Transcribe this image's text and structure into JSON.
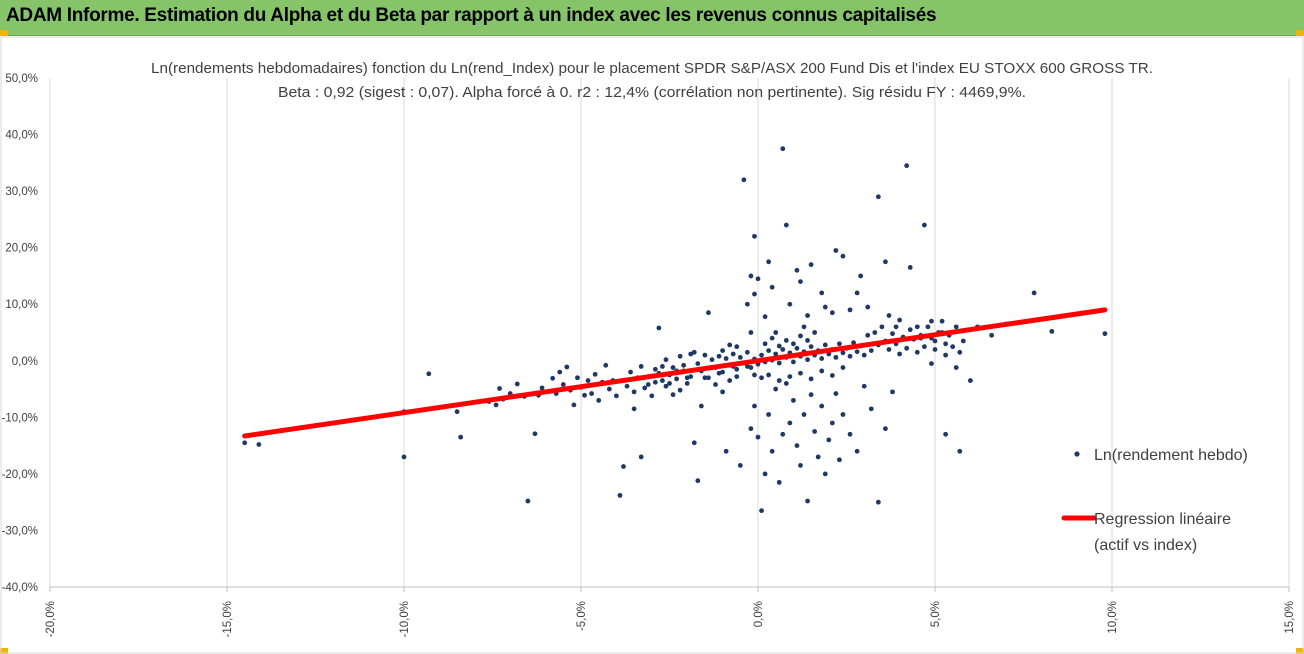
{
  "banner": {
    "title": "ADAM Informe. Estimation du Alpha et du Beta par rapport à un index avec les revenus connus capitalisés"
  },
  "colors": {
    "banner_bg": "#86c46a",
    "corner_accent": "#f0b400",
    "points": "#203864",
    "regression": "#ff0000",
    "grid": "#d9d9d9"
  },
  "chart_data": {
    "type": "scatter",
    "title": "Ln(rendements hebdomadaires) fonction du Ln(rend_Index) pour le placement SPDR S&P/ASX 200 Fund Dis et l'index EU STOXX 600 GROSS TR.",
    "subtitle": "Beta : 0,92 (sigest : 0,07). Alpha forcé à 0. r2 : 12,4% (corrélation non pertinente). Sig résidu FY : 4469,9%.",
    "xlim": [
      -0.2,
      0.15
    ],
    "ylim": [
      -0.4,
      0.5
    ],
    "x_ticks": [
      -0.2,
      -0.15,
      -0.1,
      -0.05,
      0.0,
      0.05,
      0.1,
      0.15
    ],
    "x_tick_labels": [
      "-20,0%",
      "-15,0%",
      "-10,0%",
      "-5,0%",
      "0,0%",
      "5,0%",
      "10,0%",
      "15,0%"
    ],
    "y_ticks": [
      -0.4,
      -0.3,
      -0.2,
      -0.1,
      0.0,
      0.1,
      0.2,
      0.3,
      0.4,
      0.5
    ],
    "y_tick_labels": [
      "-40,0%",
      "-30,0%",
      "-20,0%",
      "-10,0%",
      "0,0%",
      "10,0%",
      "20,0%",
      "30,0%",
      "40,0%",
      "50,0%"
    ],
    "grid": "vertical",
    "legend_position": "right",
    "series": [
      {
        "name": "Ln(rendement hebdo)",
        "kind": "scatter",
        "points": [
          [
            -0.145,
            -0.145
          ],
          [
            -0.141,
            -0.148
          ],
          [
            -0.1,
            -0.17
          ],
          [
            -0.1,
            -0.09
          ],
          [
            -0.093,
            -0.023
          ],
          [
            -0.085,
            -0.09
          ],
          [
            -0.084,
            -0.135
          ],
          [
            -0.076,
            -0.072
          ],
          [
            -0.074,
            -0.078
          ],
          [
            -0.073,
            -0.049
          ],
          [
            -0.072,
            -0.068
          ],
          [
            -0.07,
            -0.058
          ],
          [
            -0.068,
            -0.041
          ],
          [
            -0.066,
            -0.063
          ],
          [
            -0.065,
            -0.248
          ],
          [
            -0.063,
            -0.129
          ],
          [
            -0.062,
            -0.061
          ],
          [
            -0.061,
            -0.048
          ],
          [
            -0.058,
            -0.031
          ],
          [
            -0.057,
            -0.058
          ],
          [
            -0.056,
            -0.02
          ],
          [
            -0.055,
            -0.042
          ],
          [
            -0.054,
            -0.011
          ],
          [
            -0.053,
            -0.052
          ],
          [
            -0.052,
            -0.078
          ],
          [
            -0.051,
            -0.03
          ],
          [
            -0.05,
            -0.047
          ],
          [
            -0.049,
            -0.061
          ],
          [
            -0.048,
            -0.035
          ],
          [
            -0.047,
            -0.058
          ],
          [
            -0.046,
            -0.024
          ],
          [
            -0.045,
            -0.07
          ],
          [
            -0.044,
            -0.038
          ],
          [
            -0.043,
            -0.008
          ],
          [
            -0.042,
            -0.05
          ],
          [
            -0.041,
            -0.035
          ],
          [
            -0.04,
            -0.062
          ],
          [
            -0.039,
            -0.238
          ],
          [
            -0.038,
            -0.187
          ],
          [
            -0.037,
            -0.045
          ],
          [
            -0.036,
            -0.02
          ],
          [
            -0.035,
            -0.085
          ],
          [
            -0.034,
            -0.03
          ],
          [
            -0.033,
            -0.17
          ],
          [
            -0.032,
            -0.048
          ],
          [
            -0.031,
            -0.028
          ],
          [
            -0.03,
            -0.062
          ],
          [
            -0.029,
            -0.038
          ],
          [
            -0.028,
            0.058
          ],
          [
            -0.027,
            -0.01
          ],
          [
            -0.026,
            -0.045
          ],
          [
            -0.025,
            -0.025
          ],
          [
            -0.024,
            -0.06
          ],
          [
            -0.023,
            -0.032
          ],
          [
            -0.022,
            -0.052
          ],
          [
            -0.021,
            -0.018
          ],
          [
            -0.02,
            -0.04
          ],
          [
            -0.019,
            -0.028
          ],
          [
            -0.018,
            -0.145
          ],
          [
            -0.017,
            -0.212
          ],
          [
            -0.016,
            -0.08
          ],
          [
            -0.015,
            -0.03
          ],
          [
            -0.014,
            0.085
          ],
          [
            -0.013,
            -0.012
          ],
          [
            -0.012,
            -0.042
          ],
          [
            -0.011,
            -0.022
          ],
          [
            -0.01,
            -0.055
          ],
          [
            -0.009,
            -0.16
          ],
          [
            -0.008,
            -0.035
          ],
          [
            -0.007,
            -0.01
          ],
          [
            -0.006,
            -0.028
          ],
          [
            -0.005,
            -0.185
          ],
          [
            -0.004,
            0.32
          ],
          [
            -0.003,
            -0.01
          ],
          [
            -0.002,
            0.05
          ],
          [
            -0.001,
            -0.025
          ],
          [
            -0.018,
            0.015
          ],
          [
            -0.017,
            -0.005
          ],
          [
            -0.016,
            -0.018
          ],
          [
            -0.015,
            0.01
          ],
          [
            -0.014,
            -0.03
          ],
          [
            -0.013,
            0.002
          ],
          [
            -0.012,
            -0.012
          ],
          [
            -0.011,
            0.008
          ],
          [
            -0.01,
            -0.02
          ],
          [
            -0.009,
            0.004
          ],
          [
            -0.008,
            -0.008
          ],
          [
            -0.007,
            0.012
          ],
          [
            -0.006,
            -0.015
          ],
          [
            -0.005,
            0.006
          ],
          [
            -0.004,
            -0.004
          ],
          [
            -0.003,
            0.015
          ],
          [
            -0.002,
            -0.012
          ],
          [
            -0.001,
            0.003
          ],
          [
            0.0,
            -0.006
          ],
          [
            0.001,
            0.01
          ],
          [
            0.002,
            -0.002
          ],
          [
            0.003,
            0.018
          ],
          [
            0.004,
            0.001
          ],
          [
            0.005,
            0.012
          ],
          [
            0.006,
            -0.004
          ],
          [
            0.007,
            0.02
          ],
          [
            0.008,
            0.006
          ],
          [
            0.009,
            0.014
          ],
          [
            0.01,
            -0.002
          ],
          [
            0.011,
            0.022
          ],
          [
            0.012,
            0.008
          ],
          [
            0.013,
            0.016
          ],
          [
            0.014,
            0.002
          ],
          [
            0.015,
            0.025
          ],
          [
            0.016,
            0.01
          ],
          [
            0.017,
            0.018
          ],
          [
            0.018,
            0.004
          ],
          [
            0.019,
            0.028
          ],
          [
            0.02,
            0.012
          ],
          [
            0.021,
            0.02
          ],
          [
            0.022,
            0.006
          ],
          [
            0.023,
            0.03
          ],
          [
            0.024,
            0.014
          ],
          [
            0.025,
            0.022
          ],
          [
            0.026,
            0.008
          ],
          [
            0.027,
            0.032
          ],
          [
            0.028,
            0.016
          ],
          [
            0.029,
            0.026
          ],
          [
            0.03,
            0.01
          ],
          [
            -0.002,
            0.15
          ],
          [
            -0.001,
            0.118
          ],
          [
            -0.003,
            0.1
          ],
          [
            -0.001,
            0.22
          ],
          [
            0.0,
            0.145
          ],
          [
            0.002,
            0.078
          ],
          [
            0.003,
            0.175
          ],
          [
            0.004,
            0.13
          ],
          [
            0.005,
            0.05
          ],
          [
            0.007,
            0.375
          ],
          [
            0.008,
            0.24
          ],
          [
            0.009,
            0.1
          ],
          [
            0.011,
            0.16
          ],
          [
            0.012,
            0.14
          ],
          [
            0.013,
            0.06
          ],
          [
            0.014,
            0.08
          ],
          [
            0.015,
            0.17
          ],
          [
            0.016,
            0.05
          ],
          [
            0.018,
            0.12
          ],
          [
            0.019,
            0.095
          ],
          [
            0.021,
            0.085
          ],
          [
            0.022,
            0.195
          ],
          [
            0.024,
            0.185
          ],
          [
            0.026,
            0.09
          ],
          [
            0.028,
            0.12
          ],
          [
            0.029,
            0.15
          ],
          [
            0.031,
            0.095
          ],
          [
            0.034,
            0.29
          ],
          [
            0.036,
            0.175
          ],
          [
            0.037,
            0.08
          ],
          [
            0.039,
            0.06
          ],
          [
            0.04,
            0.072
          ],
          [
            0.042,
            0.345
          ],
          [
            0.043,
            0.165
          ],
          [
            0.045,
            0.06
          ],
          [
            0.046,
            0.04
          ],
          [
            0.047,
            0.24
          ],
          [
            0.049,
            0.07
          ],
          [
            0.05,
            0.035
          ],
          [
            0.052,
            0.05
          ],
          [
            0.053,
            0.03
          ],
          [
            -0.002,
            -0.12
          ],
          [
            -0.001,
            -0.08
          ],
          [
            0.0,
            -0.135
          ],
          [
            0.001,
            -0.265
          ],
          [
            0.002,
            -0.2
          ],
          [
            0.003,
            -0.095
          ],
          [
            0.004,
            -0.16
          ],
          [
            0.005,
            -0.05
          ],
          [
            0.006,
            -0.215
          ],
          [
            0.007,
            -0.13
          ],
          [
            0.008,
            -0.04
          ],
          [
            0.009,
            -0.11
          ],
          [
            0.01,
            -0.07
          ],
          [
            0.011,
            -0.15
          ],
          [
            0.012,
            -0.185
          ],
          [
            0.013,
            -0.095
          ],
          [
            0.014,
            -0.248
          ],
          [
            0.015,
            -0.06
          ],
          [
            0.016,
            -0.125
          ],
          [
            0.017,
            -0.17
          ],
          [
            0.018,
            -0.08
          ],
          [
            0.019,
            -0.2
          ],
          [
            0.02,
            -0.14
          ],
          [
            0.021,
            -0.11
          ],
          [
            0.022,
            -0.058
          ],
          [
            0.023,
            -0.175
          ],
          [
            0.024,
            -0.095
          ],
          [
            0.026,
            -0.13
          ],
          [
            0.028,
            -0.16
          ],
          [
            0.03,
            -0.045
          ],
          [
            0.032,
            -0.085
          ],
          [
            0.034,
            -0.25
          ],
          [
            0.036,
            -0.12
          ],
          [
            0.038,
            -0.055
          ],
          [
            0.031,
            0.045
          ],
          [
            0.032,
            0.018
          ],
          [
            0.033,
            0.05
          ],
          [
            0.034,
            0.028
          ],
          [
            0.035,
            0.06
          ],
          [
            0.036,
            0.035
          ],
          [
            0.037,
            0.02
          ],
          [
            0.038,
            0.048
          ],
          [
            0.039,
            0.03
          ],
          [
            0.04,
            0.012
          ],
          [
            0.041,
            0.042
          ],
          [
            0.042,
            0.022
          ],
          [
            0.043,
            0.055
          ],
          [
            0.044,
            0.038
          ],
          [
            0.045,
            0.015
          ],
          [
            0.046,
            0.045
          ],
          [
            0.047,
            0.025
          ],
          [
            0.048,
            0.06
          ],
          [
            0.049,
            0.04
          ],
          [
            0.05,
            0.02
          ],
          [
            0.051,
            0.05
          ],
          [
            0.052,
            0.07
          ],
          [
            0.053,
            0.01
          ],
          [
            0.054,
            0.045
          ],
          [
            0.055,
            0.025
          ],
          [
            0.056,
            0.06
          ],
          [
            0.057,
            0.015
          ],
          [
            0.058,
            0.035
          ],
          [
            0.049,
            -0.005
          ],
          [
            0.053,
            -0.13
          ],
          [
            0.056,
            -0.012
          ],
          [
            0.057,
            -0.16
          ],
          [
            0.06,
            -0.035
          ],
          [
            0.062,
            0.06
          ],
          [
            0.066,
            0.045
          ],
          [
            0.07,
            0.065
          ],
          [
            0.078,
            0.12
          ],
          [
            0.083,
            0.052
          ],
          [
            0.098,
            0.048
          ],
          [
            -0.028,
            -0.022
          ],
          [
            -0.026,
            0.002
          ],
          [
            -0.024,
            -0.012
          ],
          [
            -0.022,
            0.008
          ],
          [
            -0.02,
            -0.03
          ],
          [
            -0.019,
            0.012
          ],
          [
            -0.021,
            -0.008
          ],
          [
            -0.023,
            -0.018
          ],
          [
            -0.025,
            -0.04
          ],
          [
            -0.027,
            -0.035
          ],
          [
            -0.029,
            -0.015
          ],
          [
            -0.031,
            -0.042
          ],
          [
            -0.033,
            -0.01
          ],
          [
            -0.035,
            -0.055
          ],
          [
            0.002,
            0.03
          ],
          [
            0.004,
            0.04
          ],
          [
            0.006,
            0.026
          ],
          [
            0.008,
            0.036
          ],
          [
            0.01,
            0.03
          ],
          [
            0.012,
            0.044
          ],
          [
            0.014,
            0.036
          ],
          [
            -0.006,
            0.025
          ],
          [
            -0.008,
            0.028
          ],
          [
            -0.01,
            0.018
          ],
          [
            0.001,
            -0.03
          ],
          [
            0.003,
            -0.025
          ],
          [
            0.006,
            -0.035
          ],
          [
            0.009,
            -0.028
          ],
          [
            0.012,
            -0.022
          ],
          [
            0.015,
            -0.032
          ],
          [
            0.018,
            -0.018
          ],
          [
            0.021,
            -0.026
          ],
          [
            0.024,
            -0.012
          ]
        ]
      },
      {
        "name": "Regression linéaire",
        "legend_lines": [
          "Regression linéaire",
          "(actif vs index)"
        ],
        "kind": "line",
        "points": [
          [
            -0.145,
            -0.133
          ],
          [
            0.098,
            0.09
          ]
        ]
      }
    ]
  }
}
